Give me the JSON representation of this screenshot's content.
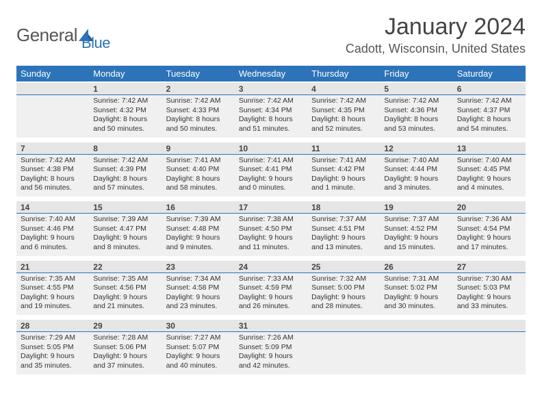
{
  "logo": {
    "text1": "General",
    "text2": "Blue"
  },
  "title": "January 2024",
  "location": "Cadott, Wisconsin, United States",
  "colors": {
    "header_bg": "#2d73b9",
    "header_text": "#ffffff",
    "daynum_bg": "#e6e6e6",
    "cell_bg": "#f0f0f0",
    "border": "#2d73b9",
    "page_bg": "#ffffff",
    "text": "#333333"
  },
  "typography": {
    "title_fontsize": 34,
    "location_fontsize": 18,
    "header_fontsize": 13,
    "daynum_fontsize": 12,
    "cell_fontsize": 10.5
  },
  "weekdays": [
    "Sunday",
    "Monday",
    "Tuesday",
    "Wednesday",
    "Thursday",
    "Friday",
    "Saturday"
  ],
  "weeks": [
    [
      {
        "num": "",
        "text": ""
      },
      {
        "num": "1",
        "text": "Sunrise: 7:42 AM\nSunset: 4:32 PM\nDaylight: 8 hours and 50 minutes."
      },
      {
        "num": "2",
        "text": "Sunrise: 7:42 AM\nSunset: 4:33 PM\nDaylight: 8 hours and 50 minutes."
      },
      {
        "num": "3",
        "text": "Sunrise: 7:42 AM\nSunset: 4:34 PM\nDaylight: 8 hours and 51 minutes."
      },
      {
        "num": "4",
        "text": "Sunrise: 7:42 AM\nSunset: 4:35 PM\nDaylight: 8 hours and 52 minutes."
      },
      {
        "num": "5",
        "text": "Sunrise: 7:42 AM\nSunset: 4:36 PM\nDaylight: 8 hours and 53 minutes."
      },
      {
        "num": "6",
        "text": "Sunrise: 7:42 AM\nSunset: 4:37 PM\nDaylight: 8 hours and 54 minutes."
      }
    ],
    [
      {
        "num": "7",
        "text": "Sunrise: 7:42 AM\nSunset: 4:38 PM\nDaylight: 8 hours and 56 minutes."
      },
      {
        "num": "8",
        "text": "Sunrise: 7:42 AM\nSunset: 4:39 PM\nDaylight: 8 hours and 57 minutes."
      },
      {
        "num": "9",
        "text": "Sunrise: 7:41 AM\nSunset: 4:40 PM\nDaylight: 8 hours and 58 minutes."
      },
      {
        "num": "10",
        "text": "Sunrise: 7:41 AM\nSunset: 4:41 PM\nDaylight: 9 hours and 0 minutes."
      },
      {
        "num": "11",
        "text": "Sunrise: 7:41 AM\nSunset: 4:42 PM\nDaylight: 9 hours and 1 minute."
      },
      {
        "num": "12",
        "text": "Sunrise: 7:40 AM\nSunset: 4:44 PM\nDaylight: 9 hours and 3 minutes."
      },
      {
        "num": "13",
        "text": "Sunrise: 7:40 AM\nSunset: 4:45 PM\nDaylight: 9 hours and 4 minutes."
      }
    ],
    [
      {
        "num": "14",
        "text": "Sunrise: 7:40 AM\nSunset: 4:46 PM\nDaylight: 9 hours and 6 minutes."
      },
      {
        "num": "15",
        "text": "Sunrise: 7:39 AM\nSunset: 4:47 PM\nDaylight: 9 hours and 8 minutes."
      },
      {
        "num": "16",
        "text": "Sunrise: 7:39 AM\nSunset: 4:48 PM\nDaylight: 9 hours and 9 minutes."
      },
      {
        "num": "17",
        "text": "Sunrise: 7:38 AM\nSunset: 4:50 PM\nDaylight: 9 hours and 11 minutes."
      },
      {
        "num": "18",
        "text": "Sunrise: 7:37 AM\nSunset: 4:51 PM\nDaylight: 9 hours and 13 minutes."
      },
      {
        "num": "19",
        "text": "Sunrise: 7:37 AM\nSunset: 4:52 PM\nDaylight: 9 hours and 15 minutes."
      },
      {
        "num": "20",
        "text": "Sunrise: 7:36 AM\nSunset: 4:54 PM\nDaylight: 9 hours and 17 minutes."
      }
    ],
    [
      {
        "num": "21",
        "text": "Sunrise: 7:35 AM\nSunset: 4:55 PM\nDaylight: 9 hours and 19 minutes."
      },
      {
        "num": "22",
        "text": "Sunrise: 7:35 AM\nSunset: 4:56 PM\nDaylight: 9 hours and 21 minutes."
      },
      {
        "num": "23",
        "text": "Sunrise: 7:34 AM\nSunset: 4:58 PM\nDaylight: 9 hours and 23 minutes."
      },
      {
        "num": "24",
        "text": "Sunrise: 7:33 AM\nSunset: 4:59 PM\nDaylight: 9 hours and 26 minutes."
      },
      {
        "num": "25",
        "text": "Sunrise: 7:32 AM\nSunset: 5:00 PM\nDaylight: 9 hours and 28 minutes."
      },
      {
        "num": "26",
        "text": "Sunrise: 7:31 AM\nSunset: 5:02 PM\nDaylight: 9 hours and 30 minutes."
      },
      {
        "num": "27",
        "text": "Sunrise: 7:30 AM\nSunset: 5:03 PM\nDaylight: 9 hours and 33 minutes."
      }
    ],
    [
      {
        "num": "28",
        "text": "Sunrise: 7:29 AM\nSunset: 5:05 PM\nDaylight: 9 hours and 35 minutes."
      },
      {
        "num": "29",
        "text": "Sunrise: 7:28 AM\nSunset: 5:06 PM\nDaylight: 9 hours and 37 minutes."
      },
      {
        "num": "30",
        "text": "Sunrise: 7:27 AM\nSunset: 5:07 PM\nDaylight: 9 hours and 40 minutes."
      },
      {
        "num": "31",
        "text": "Sunrise: 7:26 AM\nSunset: 5:09 PM\nDaylight: 9 hours and 42 minutes."
      },
      {
        "num": "",
        "text": ""
      },
      {
        "num": "",
        "text": ""
      },
      {
        "num": "",
        "text": ""
      }
    ]
  ]
}
